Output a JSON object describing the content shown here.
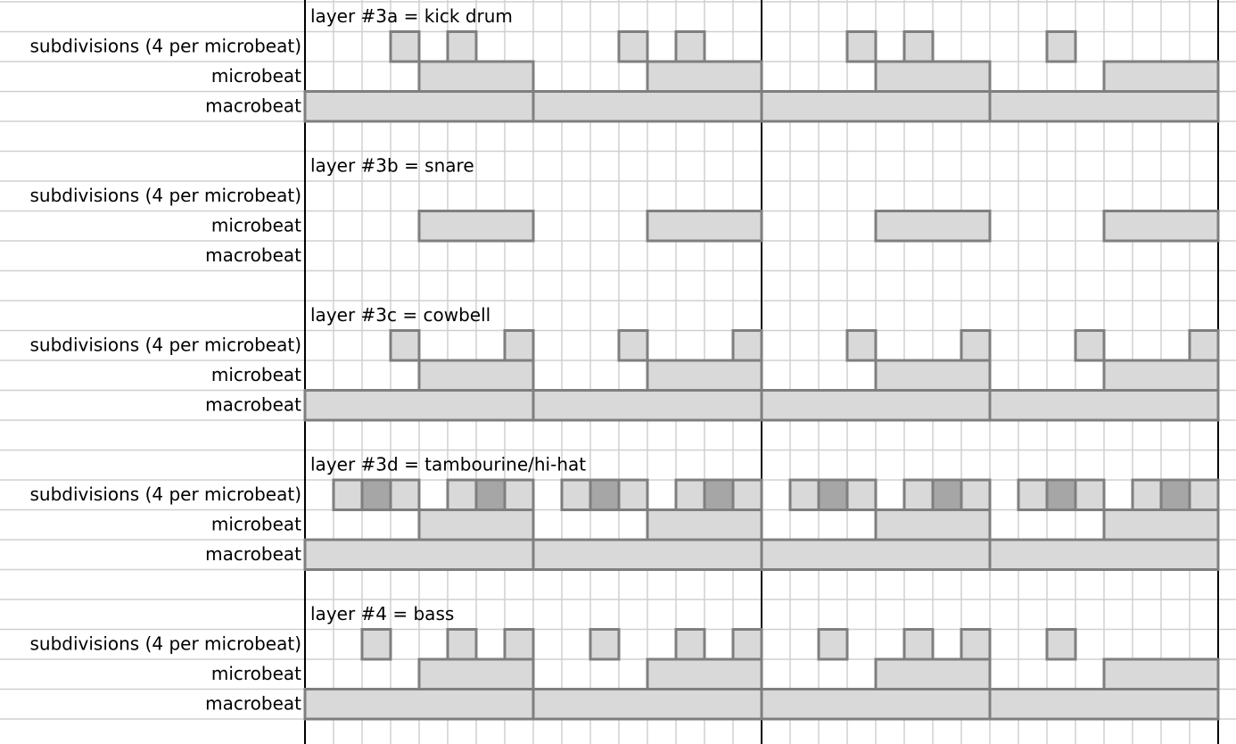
{
  "grid": {
    "line_color": "#d0d0d0",
    "bar_line_color": "#000000",
    "fill_color": "#d9d9d9",
    "accent_fill_color": "#a6a6a6",
    "stroke_color": "#7f7f7f"
  },
  "row_labels": {
    "subdivisions": "subdivisions (4 per microbeat)",
    "microbeat": "microbeat",
    "macrobeat": "macrobeat"
  },
  "layers": [
    {
      "title": "layer #3a = kick drum",
      "subdivisions": [
        3,
        5,
        11,
        13,
        19,
        21,
        26
      ],
      "accents": [],
      "microbeat": [
        1,
        3,
        5,
        7
      ],
      "macrobeat": [
        0,
        1,
        2,
        3
      ]
    },
    {
      "title": "layer #3b = snare",
      "subdivisions": [],
      "accents": [],
      "microbeat": [
        1,
        3,
        5,
        7
      ],
      "macrobeat": []
    },
    {
      "title": "layer #3c = cowbell",
      "subdivisions": [
        3,
        7,
        11,
        15,
        19,
        23,
        27,
        31
      ],
      "accents": [],
      "microbeat": [
        1,
        3,
        5,
        7
      ],
      "macrobeat": [
        0,
        1,
        2,
        3
      ]
    },
    {
      "title": "layer #3d = tambourine/hi-hat",
      "subdivisions": [
        1,
        2,
        3,
        5,
        6,
        7,
        9,
        10,
        11,
        13,
        14,
        15,
        17,
        18,
        19,
        21,
        22,
        23,
        25,
        26,
        27,
        29,
        30,
        31
      ],
      "accents": [
        2,
        6,
        10,
        14,
        18,
        22,
        26,
        30
      ],
      "microbeat": [
        1,
        3,
        5,
        7
      ],
      "macrobeat": [
        0,
        1,
        2,
        3
      ]
    },
    {
      "title": "layer #4 = bass",
      "subdivisions": [
        2,
        5,
        7,
        10,
        13,
        15,
        18,
        21,
        23,
        26
      ],
      "accents": [],
      "microbeat": [
        1,
        3,
        5,
        7
      ],
      "macrobeat": [
        0,
        1,
        2,
        3
      ]
    }
  ]
}
